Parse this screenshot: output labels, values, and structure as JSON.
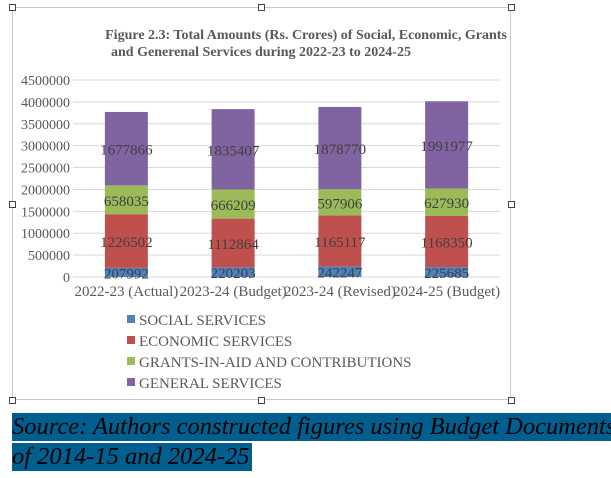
{
  "chart_data": {
    "type": "bar",
    "stacked": true,
    "title": "Figure 2.3: Total Amounts (Rs. Crores) of Social, Economic, Grants",
    "title_line2": "and Generenal Services during 2022-23 to 2024-25",
    "categories": [
      "2022-23 (Actual)",
      "2023-24 (Budget)",
      "2023-24 (Revised)",
      "2024-25  (Budget)"
    ],
    "series": [
      {
        "name": "SOCIAL SERVICES",
        "color": "#4f81bd",
        "values": [
          207992,
          220203,
          242247,
          225685
        ]
      },
      {
        "name": "ECONOMIC SERVICES",
        "color": "#c0504d",
        "values": [
          1226502,
          1112864,
          1165117,
          1168350
        ]
      },
      {
        "name": "GRANTS-IN-AID  AND CONTRIBUTIONS",
        "color": "#9bbb59",
        "values": [
          658035,
          666209,
          597906,
          627930
        ]
      },
      {
        "name": "GENERAL SERVICES",
        "color": "#8064a2",
        "values": [
          1677866,
          1835407,
          1878770,
          1991977
        ]
      }
    ],
    "yticks": [
      "0",
      "500000",
      "1000000",
      "1500000",
      "2000000",
      "2500000",
      "3000000",
      "3500000",
      "4000000",
      "4500000"
    ],
    "ylim": [
      0,
      4500000
    ],
    "grid": true,
    "legend": "bottom"
  },
  "source_line1": "Source: Authors constructed figures using Budget Documents",
  "source_line2": "of 2014-15 and 2024-25"
}
